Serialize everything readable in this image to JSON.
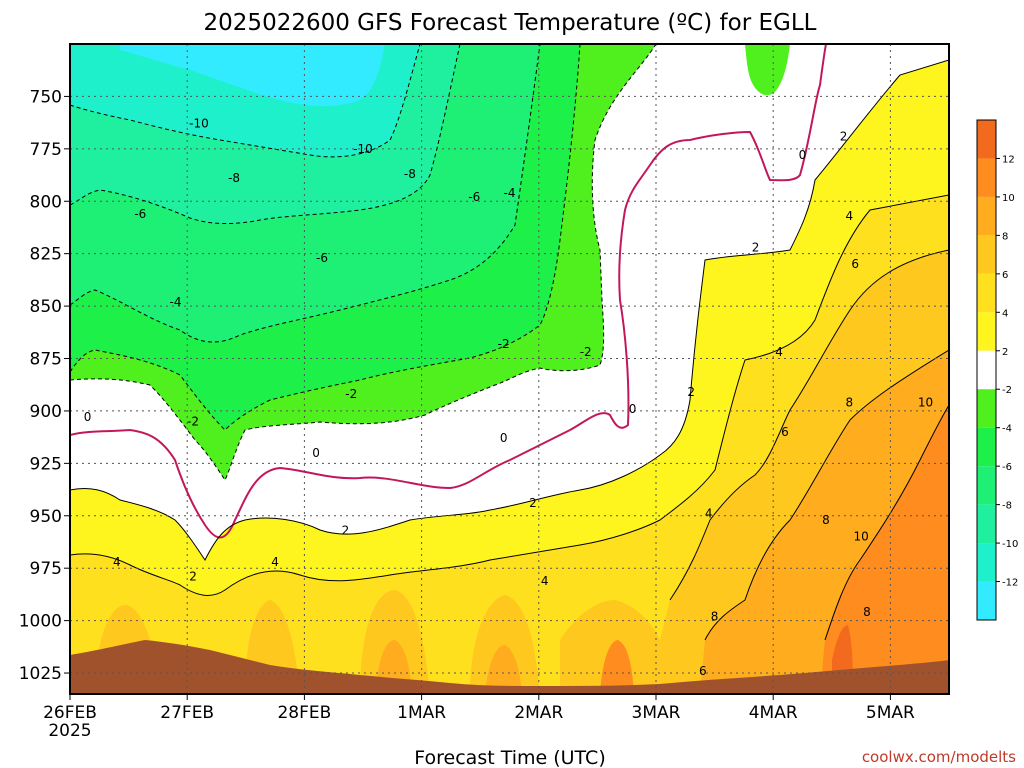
{
  "chart_data": {
    "type": "heatmap",
    "title": "2025022600 GFS Forecast Temperature (ºC) for EGLL",
    "xlabel": "Forecast Time (UTC)",
    "credit": "coolwx.com/modelts",
    "x_ticks": [
      "26FEB",
      "27FEB",
      "28FEB",
      "1MAR",
      "2MAR",
      "3MAR",
      "4MAR",
      "5MAR"
    ],
    "x_tick_sub": "2025",
    "y_ticks": [
      750,
      775,
      800,
      825,
      850,
      875,
      900,
      925,
      950,
      975,
      1000,
      1025
    ],
    "ylim": [
      1035,
      725
    ],
    "xlim_days": [
      0,
      7.5
    ],
    "grid": true,
    "colorbar": {
      "levels": [
        -14,
        -12,
        -10,
        -8,
        -6,
        -4,
        -2,
        2,
        4,
        6,
        8,
        10,
        12,
        14
      ],
      "labels": [
        "-12",
        "-10",
        "-8",
        "-6",
        "-4",
        "-2",
        "2",
        "4",
        "6",
        "8",
        "10",
        "12"
      ],
      "colors": [
        "#33ebff",
        "#1ff0cc",
        "#1ef0a0",
        "#1ef075",
        "#1ef04a",
        "#4ff01e",
        "#ffffff",
        "#fff51e",
        "#ffe01e",
        "#ffc81e",
        "#ffad1e",
        "#ff8c1e",
        "#f26a1e"
      ]
    },
    "terrain_color": "#a0522d",
    "zero_contour_color": "#c2185b",
    "contour_labels": [
      {
        "text": "-10",
        "day": 1.1,
        "p": 763
      },
      {
        "text": "-10",
        "day": 2.5,
        "p": 775
      },
      {
        "text": "-8",
        "day": 1.4,
        "p": 789
      },
      {
        "text": "-8",
        "day": 2.9,
        "p": 787
      },
      {
        "text": "-6",
        "day": 0.6,
        "p": 806
      },
      {
        "text": "-6",
        "day": 3.45,
        "p": 798
      },
      {
        "text": "-6",
        "day": 2.15,
        "p": 827
      },
      {
        "text": "-4",
        "day": 3.75,
        "p": 796
      },
      {
        "text": "-4",
        "day": 0.9,
        "p": 848
      },
      {
        "text": "-2",
        "day": 3.7,
        "p": 868
      },
      {
        "text": "-2",
        "day": 4.4,
        "p": 872
      },
      {
        "text": "-2",
        "day": 1.05,
        "p": 905
      },
      {
        "text": "-2",
        "day": 2.4,
        "p": 892
      },
      {
        "text": "0",
        "day": 0.15,
        "p": 903
      },
      {
        "text": "0",
        "day": 2.1,
        "p": 920
      },
      {
        "text": "0",
        "day": 3.7,
        "p": 913
      },
      {
        "text": "0",
        "day": 4.8,
        "p": 899
      },
      {
        "text": "0",
        "day": 6.25,
        "p": 778
      },
      {
        "text": "2",
        "day": 6.6,
        "p": 769
      },
      {
        "text": "2",
        "day": 5.3,
        "p": 891
      },
      {
        "text": "2",
        "day": 5.85,
        "p": 822
      },
      {
        "text": "2",
        "day": 2.35,
        "p": 957
      },
      {
        "text": "2",
        "day": 1.05,
        "p": 979
      },
      {
        "text": "2",
        "day": 3.95,
        "p": 944
      },
      {
        "text": "4",
        "day": 0.4,
        "p": 972
      },
      {
        "text": "4",
        "day": 1.75,
        "p": 972
      },
      {
        "text": "4",
        "day": 4.05,
        "p": 981
      },
      {
        "text": "4",
        "day": 5.45,
        "p": 949
      },
      {
        "text": "4",
        "day": 6.05,
        "p": 872
      },
      {
        "text": "4",
        "day": 6.65,
        "p": 807
      },
      {
        "text": "6",
        "day": 6.7,
        "p": 830
      },
      {
        "text": "6",
        "day": 6.1,
        "p": 910
      },
      {
        "text": "6",
        "day": 5.4,
        "p": 1024
      },
      {
        "text": "8",
        "day": 6.65,
        "p": 896
      },
      {
        "text": "8",
        "day": 6.45,
        "p": 952
      },
      {
        "text": "8",
        "day": 5.5,
        "p": 998
      },
      {
        "text": "8",
        "day": 6.8,
        "p": 996
      },
      {
        "text": "10",
        "day": 7.3,
        "p": 896
      },
      {
        "text": "10",
        "day": 6.75,
        "p": 960
      }
    ]
  }
}
